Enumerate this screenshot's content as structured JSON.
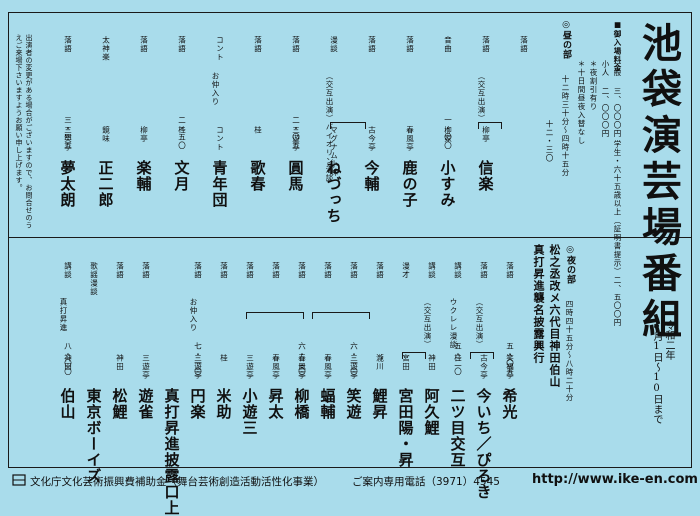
{
  "poster": {
    "title": "池袋演芸場番組",
    "date_line1": "令和二年",
    "date_line2": "3月1日〜10日まで"
  },
  "admission": {
    "header": "■御入場料金",
    "general": "一般 三、〇〇〇円",
    "student": "学生・六十五歳以上（証明書提示）二、五〇〇円",
    "child": "小人 二、〇〇〇円",
    "note1": "＊夜割引有り",
    "note2": "＊十日間昼夜入替なし"
  },
  "day": {
    "label": "◎昼の部",
    "time": "十二時三十分〜四時十五分",
    "start": "十二・三〇",
    "acts": [
      {
        "genre": "落語",
        "note": "",
        "time": "",
        "name": "",
        "sub": ""
      },
      {
        "genre": "落語",
        "note": "（交互出演）",
        "time": "",
        "name": "信楽",
        "sub": "柳亭"
      },
      {
        "genre": "音曲",
        "note": "",
        "time": "一・〇〇",
        "name": "小すみ",
        "sub": "柳家"
      },
      {
        "genre": "落語",
        "note": "",
        "time": "",
        "name": "鹿の子",
        "sub": "春風亭"
      },
      {
        "genre": "落語",
        "note": "",
        "time": "",
        "name": "今輔",
        "sub": "古今亭"
      },
      {
        "genre": "漫談",
        "note": "（交互出演）バイオリン漫談",
        "time": "",
        "name": "ねづっち",
        "sub": "マグナム小林"
      },
      {
        "genre": "落語",
        "note": "",
        "time": "二・〇五",
        "name": "圓馬",
        "sub": "三遊亭"
      },
      {
        "genre": "落語",
        "note": "",
        "time": "",
        "name": "歌春",
        "sub": "桂"
      },
      {
        "genre": "コント",
        "note": "お仲入り",
        "time": "",
        "name": "青年団",
        "sub": "コント"
      },
      {
        "genre": "落語",
        "note": "",
        "time": "二・五〇",
        "name": "文月",
        "sub": "桂"
      },
      {
        "genre": "落語",
        "note": "",
        "time": "",
        "name": "楽輔",
        "sub": "柳亭"
      },
      {
        "genre": "太神楽",
        "note": "",
        "time": "",
        "name": "正二郎",
        "sub": "鏡味"
      },
      {
        "genre": "落語",
        "note": "",
        "time": "三・四五",
        "name": "夢太朗",
        "sub": "三笑亭"
      }
    ],
    "notice": "出演者の変更がある場合がございますので、お問合せのうえご来場下さいますようお願い申し上げます。"
  },
  "night": {
    "label": "◎夜の部",
    "time": "四時四十五分〜八時二十分",
    "event_line1": "松之丞改メ六代目神田伯山",
    "event_line2": "真打昇進襲名披露興行",
    "acts": [
      {
        "genre": "落語",
        "note": "",
        "time": "五・〇五",
        "name": "希光",
        "sub": "笑福亭"
      },
      {
        "genre": "落語",
        "note": "（交互出演）",
        "time": "",
        "name": "今いち／ぴろき",
        "sub": "古今亭"
      },
      {
        "genre": "講談",
        "note": "ウクレレ漫談",
        "time": "五・二〇",
        "name": "二ツ目交互",
        "sub": "桂"
      },
      {
        "genre": "講談",
        "note": "（交互出演）",
        "time": "",
        "name": "阿久鯉",
        "sub": "神田"
      },
      {
        "genre": "漫才",
        "note": "",
        "time": "",
        "name": "宮田陽・昇",
        "sub": "宮田"
      },
      {
        "genre": "落語",
        "note": "",
        "time": "",
        "name": "鯉昇",
        "sub": "瀧川"
      },
      {
        "genre": "落語",
        "note": "",
        "time": "六・一〇",
        "name": "笑遊",
        "sub": "三遊亭"
      },
      {
        "genre": "落語",
        "note": "",
        "time": "",
        "name": "蝠輔",
        "sub": "春風亭"
      },
      {
        "genre": "落語",
        "note": "",
        "time": "六・二〇",
        "name": "柳橋",
        "sub": "春風亭"
      },
      {
        "genre": "落語",
        "note": "",
        "time": "",
        "name": "昇太",
        "sub": "春風亭"
      },
      {
        "genre": "落語",
        "note": "",
        "time": "",
        "name": "小遊三",
        "sub": "三遊亭"
      },
      {
        "genre": "落語",
        "note": "",
        "time": "",
        "name": "米助",
        "sub": "桂"
      },
      {
        "genre": "落語",
        "note": "お仲入り",
        "time": "七・一〇",
        "name": "円楽",
        "sub": "三遊亭"
      },
      {
        "genre": "",
        "note": "",
        "time": "",
        "name": "真打昇進披露口上",
        "sub": ""
      },
      {
        "genre": "落語",
        "note": "",
        "time": "",
        "name": "遊雀",
        "sub": "三遊亭"
      },
      {
        "genre": "落語",
        "note": "",
        "time": "",
        "name": "松鯉",
        "sub": "神田"
      },
      {
        "genre": "歌謡漫談",
        "note": "",
        "time": "",
        "name": "東京ボーイズ",
        "sub": ""
      },
      {
        "genre": "講談",
        "note": "真打昇進",
        "time": "八・〇〇",
        "name": "伯山",
        "sub": "神田"
      }
    ]
  },
  "footer": {
    "sponsor": "文化庁文化芸術振興費補助金（舞台芸術創造活動活性化事業）",
    "phone": "ご案内専用電話（3971）4545",
    "url": "http://www.ike-en.com"
  }
}
